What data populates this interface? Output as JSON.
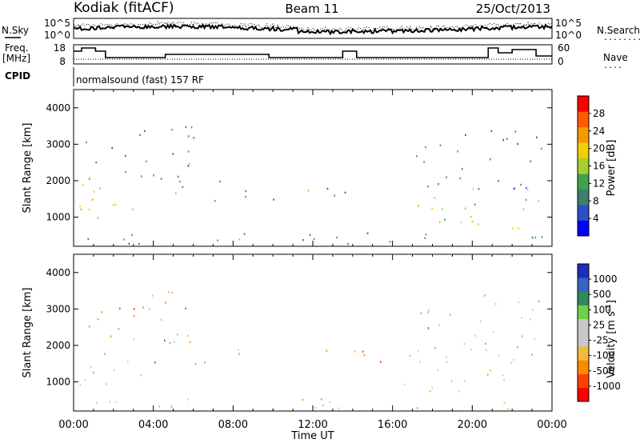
{
  "header": {
    "station": "Kodiak (fitACF)",
    "beam": "Beam 11",
    "date": "25/Oct/2013"
  },
  "summary": {
    "nsky_label": "N.Sky",
    "nsearch_label": "N.Search",
    "nsearch_dots": "........",
    "noise_ticks": [
      "10^5",
      "10^0"
    ],
    "freq_label_1": "Freq.",
    "freq_label_2": "[MHz]",
    "freq_ticks": [
      "18",
      "8"
    ],
    "nave_ticks": [
      "60",
      "0"
    ],
    "nave_label": "Nave",
    "nave_dots": "....",
    "cpid_label": "CPID",
    "cpid_text": "normalsound (fast) 157 RF"
  },
  "colors": {
    "power_scale": [
      "#0000ff",
      "#2d4ec9",
      "#3a7f6f",
      "#3fa34d",
      "#a6cf2f",
      "#f2ce0a",
      "#f79a00",
      "#ff5a00",
      "#ff0000"
    ],
    "velocity_scale": [
      "#ff0000",
      "#ff4000",
      "#ff8a00",
      "#f2ba3a",
      "#c8c8c8",
      "#c8c8c8",
      "#6fd04a",
      "#2e8b57",
      "#3a62c4",
      "#1b2dbb"
    ],
    "ground_scatter": "#c8c8c8"
  },
  "chart_data": [
    {
      "type": "heatmap",
      "name": "power",
      "ylabel": "Slant Range [km]",
      "y_ticks": [
        "1000",
        "2000",
        "3000",
        "4000"
      ],
      "ylim": [
        200,
        4500
      ],
      "xlim": [
        0,
        24
      ],
      "colorbar": {
        "label": "Power [dB]",
        "ticks": [
          "4",
          "8",
          "12",
          "16",
          "20",
          "24",
          "28"
        ],
        "range": [
          0,
          32
        ]
      },
      "regions": [
        {
          "t0": 0.3,
          "t1": 3.5,
          "r0": 700,
          "r1": 2100,
          "value": 20
        },
        {
          "t0": 0.5,
          "t1": 6.0,
          "r0": 2000,
          "r1": 3500,
          "value": 10
        },
        {
          "t0": 3.5,
          "t1": 6.5,
          "r0": 1500,
          "r1": 2200,
          "value": 12
        },
        {
          "t0": 6.5,
          "t1": 8.9,
          "r0": 1400,
          "r1": 2100,
          "value": 8
        },
        {
          "t0": 10.0,
          "t1": 15.5,
          "r0": 1500,
          "r1": 1900,
          "value": 10
        },
        {
          "t0": 16.5,
          "t1": 23.9,
          "r0": 700,
          "r1": 1800,
          "value": 16
        },
        {
          "t0": 17.0,
          "t1": 23.5,
          "r0": 1800,
          "r1": 3400,
          "value": 8
        },
        {
          "t0": 0.3,
          "t1": 23.9,
          "r0": 250,
          "r1": 600,
          "value": 10
        }
      ]
    },
    {
      "type": "heatmap",
      "name": "velocity",
      "ylabel": "Slant Range [km]",
      "y_ticks": [
        "1000",
        "2000",
        "3000",
        "4000"
      ],
      "ylim": [
        200,
        4500
      ],
      "xlim": [
        0,
        24
      ],
      "colorbar": {
        "label": "Velocity [m s-1]",
        "label_main": "Velocity [m s",
        "label_sup": "-1",
        "label_end": "]",
        "ticks": [
          "-1000",
          "-500",
          "-100",
          "-25",
          "25",
          "100",
          "500",
          "1000"
        ],
        "range": [
          -1000,
          1000
        ]
      },
      "regions": [
        {
          "t0": 0.3,
          "t1": 3.5,
          "r0": 700,
          "r1": 1900,
          "value": 0
        },
        {
          "t0": 0.5,
          "t1": 6.0,
          "r0": 2000,
          "r1": 3500,
          "value": -400
        },
        {
          "t0": 3.5,
          "t1": 6.5,
          "r0": 1500,
          "r1": 2200,
          "value": 300
        },
        {
          "t0": 6.5,
          "t1": 8.9,
          "r0": 1400,
          "r1": 2000,
          "value": 150
        },
        {
          "t0": 10.0,
          "t1": 15.5,
          "r0": 1500,
          "r1": 1900,
          "value": -400
        },
        {
          "t0": 16.5,
          "t1": 23.9,
          "r0": 700,
          "r1": 1800,
          "value": 0
        },
        {
          "t0": 17.0,
          "t1": 23.5,
          "r0": 1800,
          "r1": 3400,
          "value": 200
        },
        {
          "t0": 0.3,
          "t1": 23.9,
          "r0": 250,
          "r1": 550,
          "value": -300
        }
      ]
    }
  ],
  "x_axis": {
    "label": "Time UT",
    "ticks": [
      "00:00",
      "04:00",
      "08:00",
      "12:00",
      "16:00",
      "20:00",
      "00:00"
    ]
  }
}
